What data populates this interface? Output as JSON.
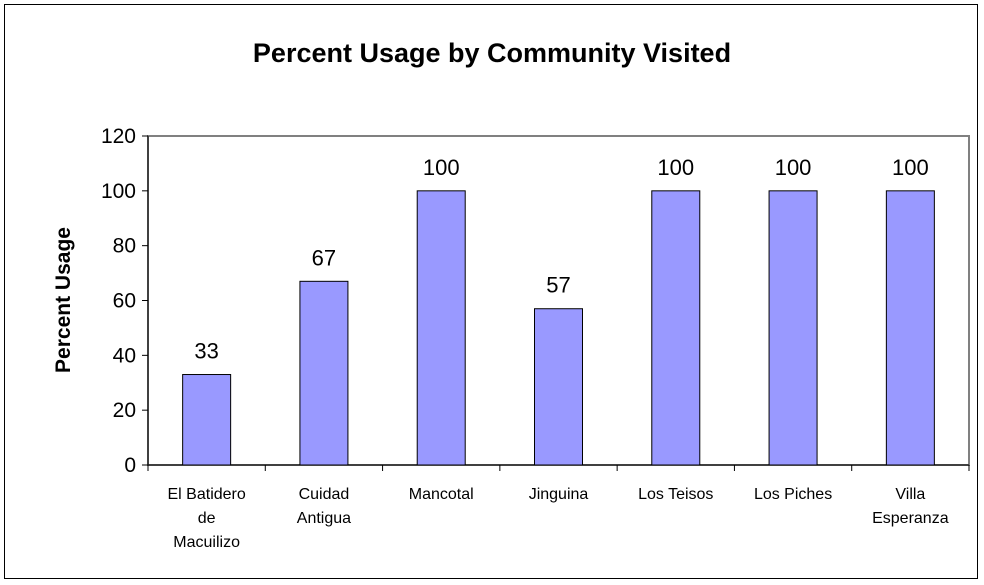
{
  "chart_data": {
    "type": "bar",
    "title": "Percent Usage by Community Visited",
    "xlabel": "",
    "ylabel": "Percent Usage",
    "ylim": [
      0,
      120
    ],
    "yticks": [
      0,
      20,
      40,
      60,
      80,
      100,
      120
    ],
    "grid": false,
    "legend": "none",
    "categories": [
      [
        "El Batidero",
        "de",
        "Macuilizo"
      ],
      [
        "Cuidad",
        "Antigua"
      ],
      [
        "Mancotal"
      ],
      [
        "Jinguina"
      ],
      [
        "Los Teisos"
      ],
      [
        "Los Piches"
      ],
      [
        "Villa",
        "Esperanza"
      ]
    ],
    "values": [
      33,
      67,
      100,
      57,
      100,
      100,
      100
    ],
    "data_labels": [
      "33",
      "67",
      "100",
      "57",
      "100",
      "100",
      "100"
    ],
    "colors": {
      "bar_fill": "#9999ff",
      "bar_stroke": "#000000",
      "plot_border": "#808080",
      "axis": "#000000"
    }
  }
}
